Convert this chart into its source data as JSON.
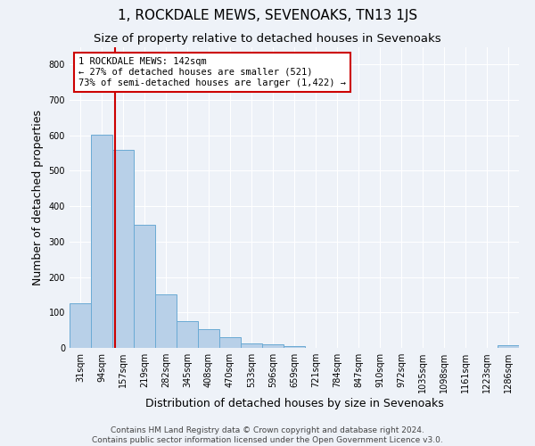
{
  "title": "1, ROCKDALE MEWS, SEVENOAKS, TN13 1JS",
  "subtitle": "Size of property relative to detached houses in Sevenoaks",
  "xlabel": "Distribution of detached houses by size in Sevenoaks",
  "ylabel": "Number of detached properties",
  "bar_labels": [
    "31sqm",
    "94sqm",
    "157sqm",
    "219sqm",
    "282sqm",
    "345sqm",
    "408sqm",
    "470sqm",
    "533sqm",
    "596sqm",
    "659sqm",
    "721sqm",
    "784sqm",
    "847sqm",
    "910sqm",
    "972sqm",
    "1035sqm",
    "1098sqm",
    "1161sqm",
    "1223sqm",
    "1286sqm"
  ],
  "bar_values": [
    125,
    603,
    558,
    347,
    150,
    75,
    52,
    30,
    13,
    10,
    5,
    1,
    0,
    0,
    0,
    0,
    0,
    0,
    0,
    0,
    8
  ],
  "bar_color": "#b8d0e8",
  "bar_edge_color": "#6aaad4",
  "vline_color": "#cc0000",
  "vline_x": 1.62,
  "annotation_text": "1 ROCKDALE MEWS: 142sqm\n← 27% of detached houses are smaller (521)\n73% of semi-detached houses are larger (1,422) →",
  "annotation_box_color": "#ffffff",
  "annotation_box_edge": "#cc0000",
  "ylim": [
    0,
    850
  ],
  "yticks": [
    0,
    100,
    200,
    300,
    400,
    500,
    600,
    700,
    800
  ],
  "footer_line1": "Contains HM Land Registry data © Crown copyright and database right 2024.",
  "footer_line2": "Contains public sector information licensed under the Open Government Licence v3.0.",
  "title_fontsize": 11,
  "subtitle_fontsize": 9.5,
  "ylabel_fontsize": 9,
  "xlabel_fontsize": 9,
  "tick_fontsize": 7,
  "annotation_fontsize": 7.5,
  "footer_fontsize": 6.5,
  "bg_color": "#eef2f8",
  "grid_color": "#ffffff"
}
